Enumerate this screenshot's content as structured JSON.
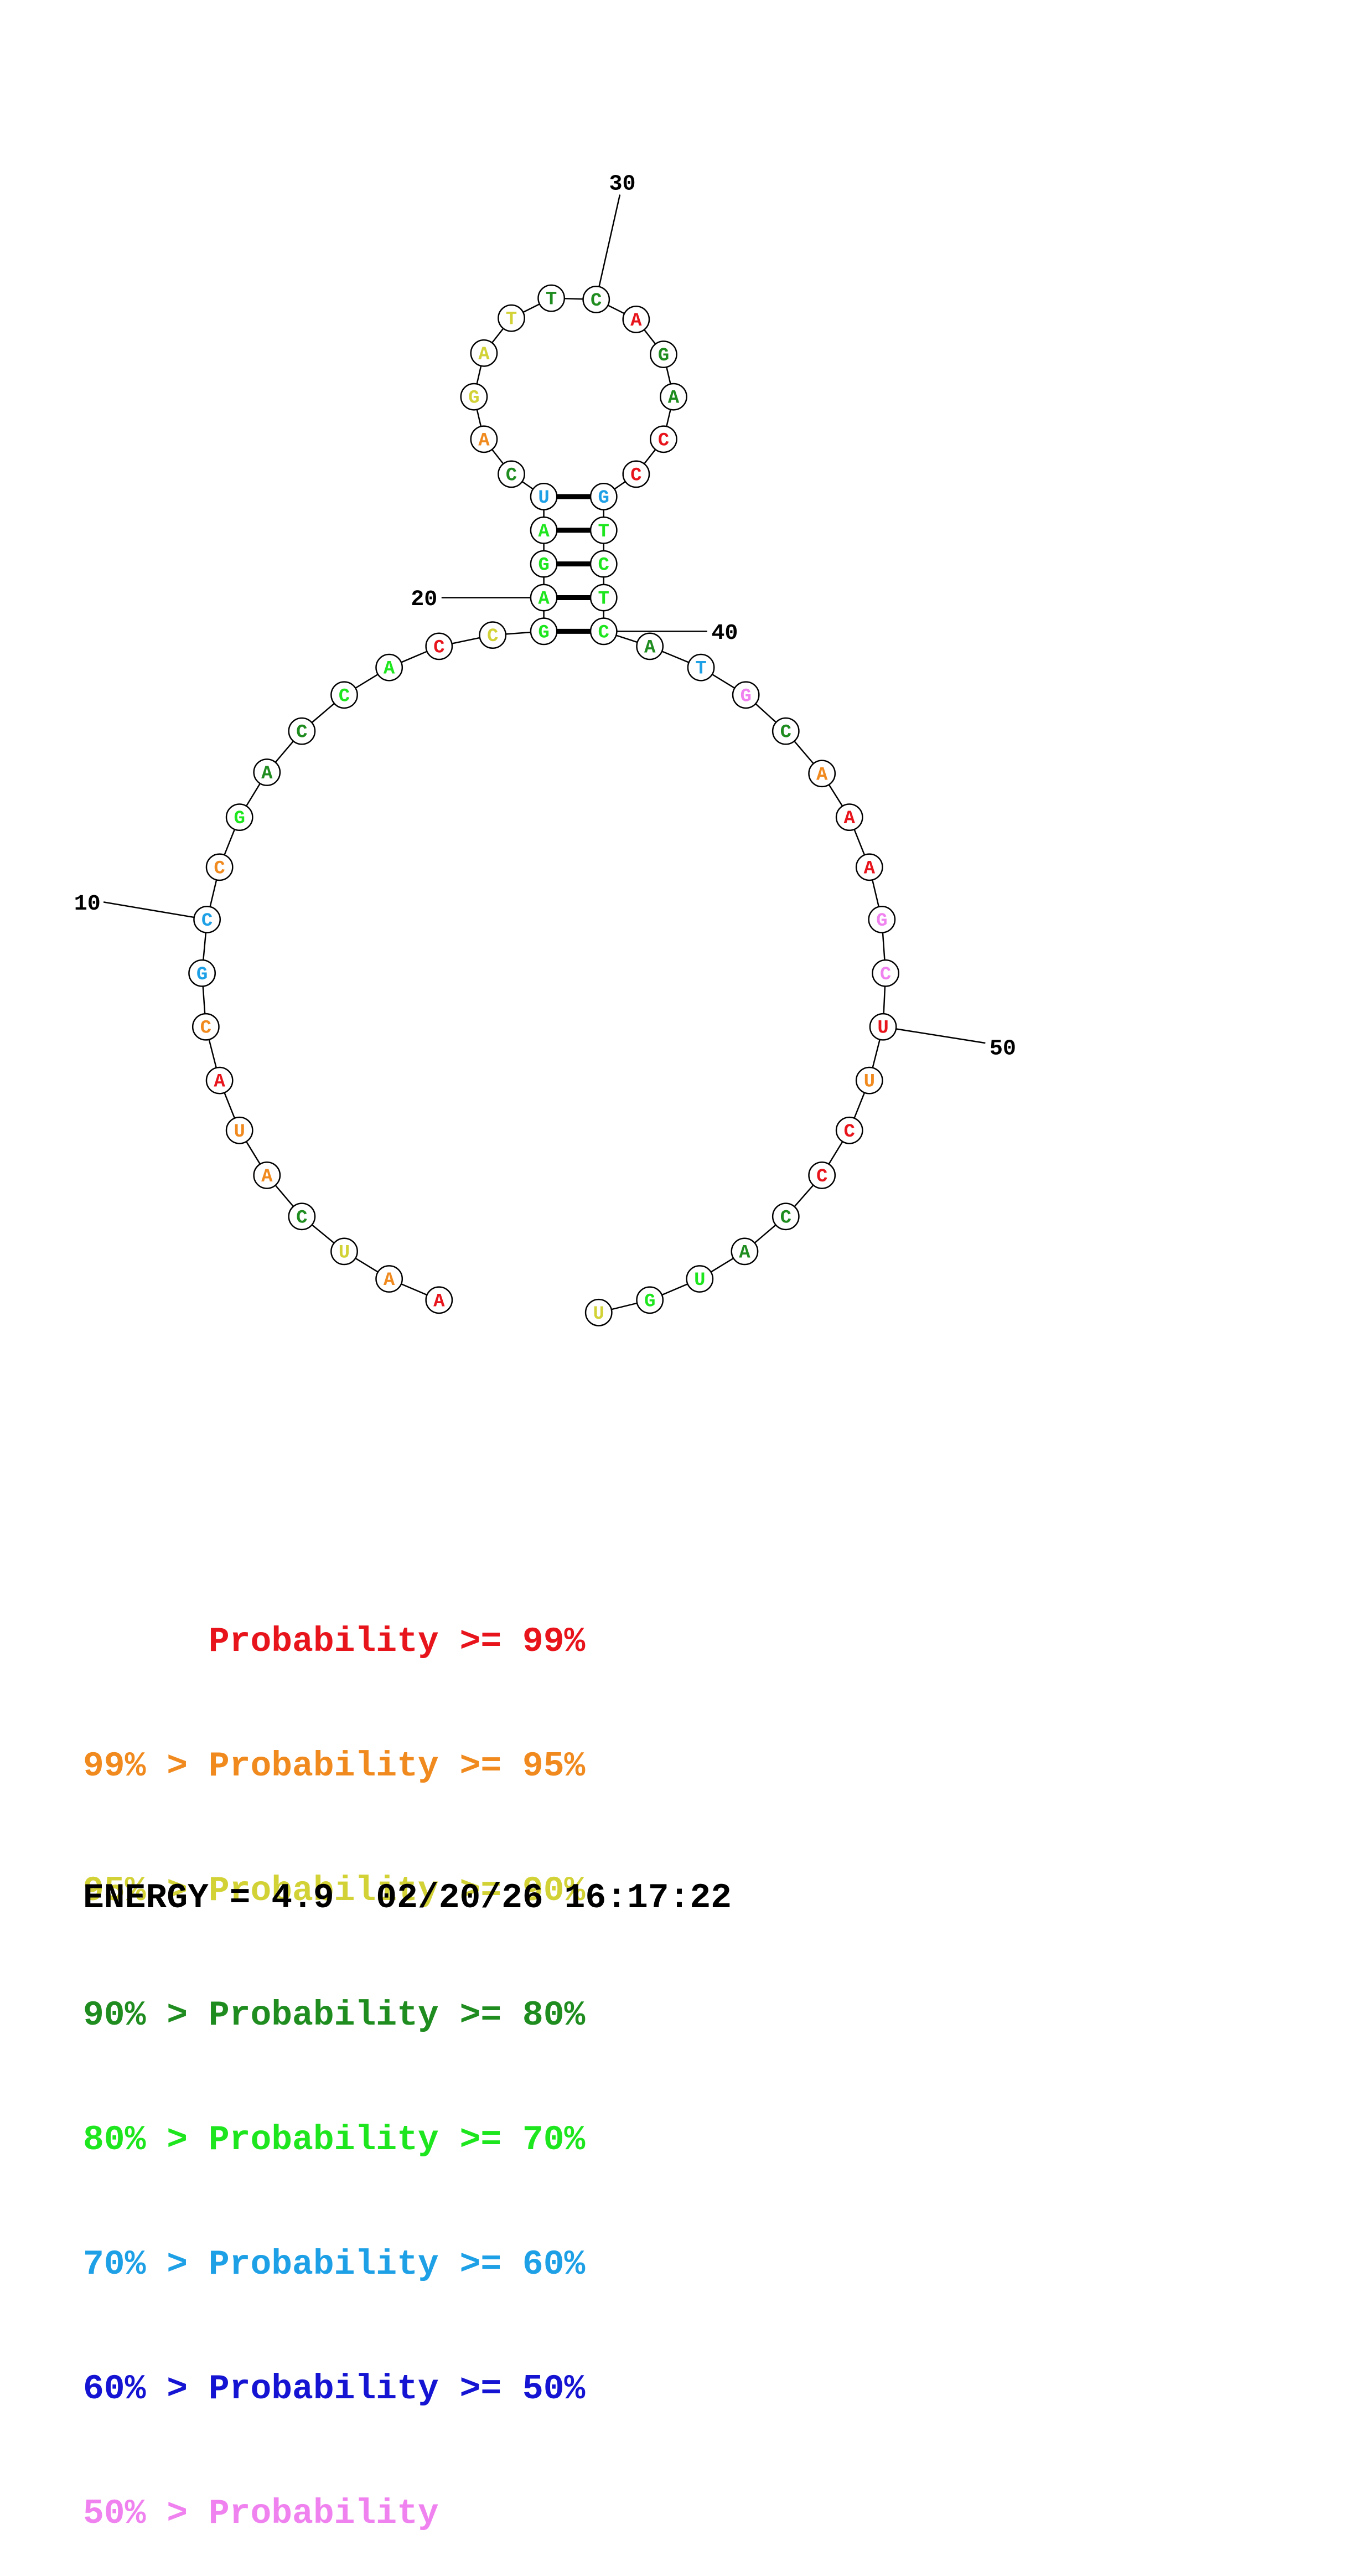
{
  "colors": {
    "p99": "#e8141c",
    "p95": "#f08a1e",
    "p90": "#d2d236",
    "p80": "#1f8c1f",
    "p70": "#1ee61e",
    "p60": "#1ea0e6",
    "p50": "#1414d2",
    "p_low": "#f082f0",
    "line": "#000000"
  },
  "sequence": [
    {
      "n": 1,
      "base": "A",
      "prob": "p99"
    },
    {
      "n": 2,
      "base": "A",
      "prob": "p95"
    },
    {
      "n": 3,
      "base": "U",
      "prob": "p90"
    },
    {
      "n": 4,
      "base": "C",
      "prob": "p80"
    },
    {
      "n": 5,
      "base": "A",
      "prob": "p95"
    },
    {
      "n": 6,
      "base": "U",
      "prob": "p95"
    },
    {
      "n": 7,
      "base": "A",
      "prob": "p99"
    },
    {
      "n": 8,
      "base": "C",
      "prob": "p95"
    },
    {
      "n": 9,
      "base": "G",
      "prob": "p60"
    },
    {
      "n": 10,
      "base": "C",
      "prob": "p60"
    },
    {
      "n": 11,
      "base": "C",
      "prob": "p95"
    },
    {
      "n": 12,
      "base": "G",
      "prob": "p70"
    },
    {
      "n": 13,
      "base": "A",
      "prob": "p80"
    },
    {
      "n": 14,
      "base": "C",
      "prob": "p80"
    },
    {
      "n": 15,
      "base": "C",
      "prob": "p70"
    },
    {
      "n": 16,
      "base": "A",
      "prob": "p70"
    },
    {
      "n": 17,
      "base": "C",
      "prob": "p99"
    },
    {
      "n": 18,
      "base": "C",
      "prob": "p90"
    },
    {
      "n": 19,
      "base": "G",
      "prob": "p70"
    },
    {
      "n": 20,
      "base": "A",
      "prob": "p70"
    },
    {
      "n": 21,
      "base": "G",
      "prob": "p70"
    },
    {
      "n": 22,
      "base": "A",
      "prob": "p70"
    },
    {
      "n": 23,
      "base": "U",
      "prob": "p60"
    },
    {
      "n": 24,
      "base": "C",
      "prob": "p80"
    },
    {
      "n": 25,
      "base": "A",
      "prob": "p95"
    },
    {
      "n": 26,
      "base": "G",
      "prob": "p90"
    },
    {
      "n": 27,
      "base": "A",
      "prob": "p90"
    },
    {
      "n": 28,
      "base": "T",
      "prob": "p90"
    },
    {
      "n": 29,
      "base": "T",
      "prob": "p80"
    },
    {
      "n": 30,
      "base": "C",
      "prob": "p80"
    },
    {
      "n": 31,
      "base": "A",
      "prob": "p99"
    },
    {
      "n": 32,
      "base": "G",
      "prob": "p80"
    },
    {
      "n": 33,
      "base": "A",
      "prob": "p80"
    },
    {
      "n": 34,
      "base": "C",
      "prob": "p99"
    },
    {
      "n": 35,
      "base": "C",
      "prob": "p99"
    },
    {
      "n": 36,
      "base": "G",
      "prob": "p60"
    },
    {
      "n": 37,
      "base": "T",
      "prob": "p70"
    },
    {
      "n": 38,
      "base": "C",
      "prob": "p70"
    },
    {
      "n": 39,
      "base": "T",
      "prob": "p70"
    },
    {
      "n": 40,
      "base": "C",
      "prob": "p70"
    },
    {
      "n": 41,
      "base": "A",
      "prob": "p80"
    },
    {
      "n": 42,
      "base": "T",
      "prob": "p60"
    },
    {
      "n": 43,
      "base": "G",
      "prob": "p_low"
    },
    {
      "n": 44,
      "base": "C",
      "prob": "p80"
    },
    {
      "n": 45,
      "base": "A",
      "prob": "p95"
    },
    {
      "n": 46,
      "base": "A",
      "prob": "p99"
    },
    {
      "n": 47,
      "base": "A",
      "prob": "p99"
    },
    {
      "n": 48,
      "base": "G",
      "prob": "p_low"
    },
    {
      "n": 49,
      "base": "C",
      "prob": "p_low"
    },
    {
      "n": 50,
      "base": "U",
      "prob": "p99"
    },
    {
      "n": 51,
      "base": "U",
      "prob": "p95"
    },
    {
      "n": 52,
      "base": "C",
      "prob": "p99"
    },
    {
      "n": 53,
      "base": "C",
      "prob": "p99"
    },
    {
      "n": 54,
      "base": "C",
      "prob": "p80"
    },
    {
      "n": 55,
      "base": "A",
      "prob": "p80"
    },
    {
      "n": 56,
      "base": "U",
      "prob": "p70"
    },
    {
      "n": 57,
      "base": "G",
      "prob": "p70"
    },
    {
      "n": 58,
      "base": "U",
      "prob": "p90"
    }
  ],
  "pairs": [
    [
      19,
      40
    ],
    [
      20,
      39
    ],
    [
      21,
      38
    ],
    [
      22,
      37
    ],
    [
      23,
      36
    ]
  ],
  "position_labels": [
    "10",
    "20",
    "30",
    "40",
    "50"
  ],
  "legend": [
    {
      "text": "      Probability >= 99%",
      "prob": "p99"
    },
    {
      "text": "99% > Probability >= 95%",
      "prob": "p95"
    },
    {
      "text": "95% > Probability >= 90%",
      "prob": "p90"
    },
    {
      "text": "90% > Probability >= 80%",
      "prob": "p80"
    },
    {
      "text": "80% > Probability >= 70%",
      "prob": "p70"
    },
    {
      "text": "70% > Probability >= 60%",
      "prob": "p60"
    },
    {
      "text": "60% > Probability >= 50%",
      "prob": "p50"
    },
    {
      "text": "50% > Probability",
      "prob": "p_low"
    }
  ],
  "energy": "ENERGY = 4.9  02/20/26 16:17:22"
}
